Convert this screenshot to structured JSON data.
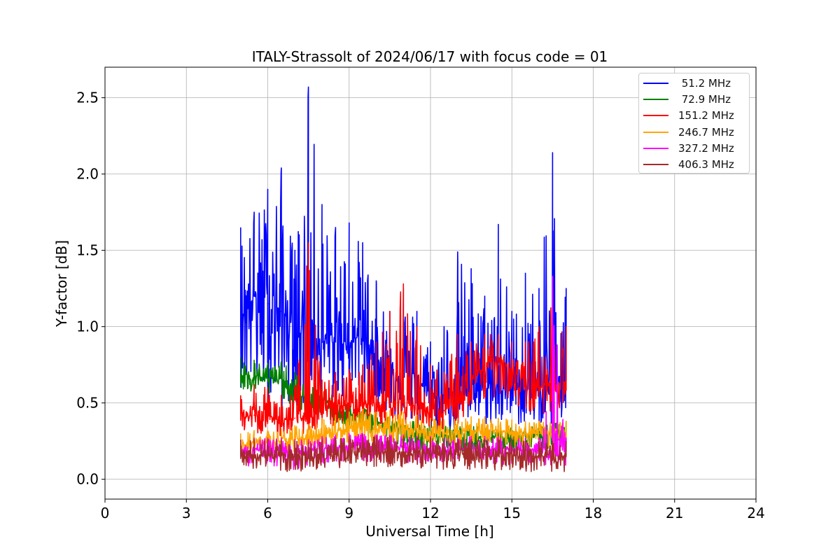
{
  "chart_data": {
    "type": "line",
    "title": "ITALY-Strassolt of 2024/06/17 with focus code = 01",
    "xlabel": "Universal Time [h]",
    "ylabel": "Y-factor [dB]",
    "xlim": [
      0,
      24
    ],
    "ylim": [
      -0.13,
      2.7
    ],
    "xticks": [
      0,
      3,
      6,
      9,
      12,
      15,
      18,
      21,
      24
    ],
    "yticks": [
      0.0,
      0.5,
      1.0,
      1.5,
      2.0,
      2.5
    ],
    "xtick_labels": [
      "0",
      "3",
      "6",
      "9",
      "12",
      "15",
      "18",
      "21",
      "24"
    ],
    "ytick_labels": [
      "0.0",
      "0.5",
      "1.0",
      "1.5",
      "2.0",
      "2.5"
    ],
    "grid": true,
    "legend_position": "top-right",
    "series": [
      {
        "name": " 51.2 MHz",
        "color": "#0000ff",
        "x": [
          5.0,
          5.5,
          6.0,
          6.5,
          7.0,
          7.5,
          8.0,
          8.5,
          9.0,
          9.5,
          10.0,
          10.5,
          11.0,
          11.5,
          12.0,
          12.5,
          13.0,
          13.5,
          14.0,
          14.5,
          15.0,
          15.5,
          16.0,
          16.5,
          17.0
        ],
        "values": [
          1.1,
          1.2,
          1.15,
          1.1,
          1.0,
          1.0,
          0.9,
          0.9,
          0.9,
          0.95,
          0.8,
          0.7,
          0.7,
          0.65,
          0.55,
          0.55,
          0.6,
          0.65,
          0.6,
          0.6,
          0.65,
          0.6,
          0.55,
          0.65,
          0.7
        ],
        "upper": [
          1.65,
          1.75,
          1.9,
          2.04,
          1.5,
          2.57,
          1.8,
          1.65,
          1.68,
          1.55,
          1.3,
          1.1,
          1.25,
          1.1,
          0.9,
          1.0,
          1.49,
          1.38,
          1.2,
          1.67,
          1.1,
          1.35,
          1.25,
          2.14,
          1.25
        ],
        "lower": [
          0.6,
          0.55,
          0.5,
          0.45,
          0.45,
          0.4,
          0.5,
          0.5,
          0.55,
          0.55,
          0.45,
          0.4,
          0.4,
          0.35,
          0.3,
          0.3,
          0.3,
          0.35,
          0.35,
          0.35,
          0.35,
          0.35,
          0.35,
          0.35,
          0.35
        ]
      },
      {
        "name": " 72.9 MHz",
        "color": "#008000",
        "x": [
          5.0,
          5.5,
          6.0,
          6.5,
          7.0,
          7.5,
          8.0,
          8.5,
          9.0,
          9.5,
          10.0,
          10.5,
          11.0,
          11.5,
          12.0,
          12.5,
          13.0,
          13.5,
          14.0,
          14.5,
          15.0,
          15.5,
          16.0,
          16.5,
          17.0
        ],
        "values": [
          0.68,
          0.68,
          0.66,
          0.66,
          0.58,
          0.5,
          0.52,
          0.45,
          0.42,
          0.42,
          0.38,
          0.35,
          0.32,
          0.3,
          0.28,
          0.28,
          0.28,
          0.28,
          0.28,
          0.28,
          0.28,
          0.28,
          0.28,
          0.3,
          0.32
        ],
        "upper": [
          0.8,
          0.78,
          0.76,
          0.77,
          0.7,
          0.62,
          0.6,
          0.55,
          0.5,
          0.48,
          0.45,
          0.42,
          0.4,
          0.38,
          0.36,
          0.35,
          0.35,
          0.35,
          0.35,
          0.35,
          0.35,
          0.35,
          0.35,
          0.37,
          0.38
        ],
        "lower": [
          0.56,
          0.56,
          0.54,
          0.54,
          0.46,
          0.4,
          0.42,
          0.36,
          0.32,
          0.32,
          0.28,
          0.25,
          0.22,
          0.2,
          0.18,
          0.18,
          0.18,
          0.18,
          0.18,
          0.18,
          0.18,
          0.18,
          0.18,
          0.2,
          0.22
        ]
      },
      {
        "name": "151.2 MHz",
        "color": "#ff0000",
        "x": [
          5.0,
          5.5,
          6.0,
          6.5,
          7.0,
          7.5,
          8.0,
          8.5,
          9.0,
          9.5,
          10.0,
          10.5,
          11.0,
          11.5,
          12.0,
          12.5,
          13.0,
          13.5,
          14.0,
          14.5,
          15.0,
          15.5,
          16.0,
          16.5,
          17.0
        ],
        "values": [
          0.4,
          0.42,
          0.42,
          0.38,
          0.4,
          0.4,
          0.45,
          0.48,
          0.5,
          0.5,
          0.48,
          0.52,
          0.5,
          0.48,
          0.45,
          0.45,
          0.5,
          0.6,
          0.75,
          0.8,
          0.72,
          0.6,
          0.6,
          0.62,
          0.65
        ],
        "upper": [
          0.55,
          0.62,
          0.6,
          0.55,
          0.6,
          1.55,
          0.65,
          0.7,
          0.72,
          0.75,
          0.9,
          1.1,
          1.28,
          1.0,
          0.75,
          0.7,
          0.95,
          0.9,
          0.95,
          0.95,
          0.9,
          0.9,
          1.0,
          1.2,
          1.0
        ],
        "lower": [
          0.28,
          0.3,
          0.3,
          0.28,
          0.3,
          0.3,
          0.32,
          0.35,
          0.36,
          0.36,
          0.35,
          0.38,
          0.36,
          0.34,
          0.32,
          0.32,
          0.35,
          0.4,
          0.5,
          0.55,
          0.5,
          0.42,
          0.42,
          0.45,
          0.45
        ]
      },
      {
        "name": "246.7 MHz",
        "color": "#ffa500",
        "x": [
          5.0,
          5.5,
          6.0,
          6.5,
          7.0,
          7.5,
          8.0,
          8.5,
          9.0,
          9.5,
          10.0,
          10.5,
          11.0,
          11.5,
          12.0,
          12.5,
          13.0,
          13.5,
          14.0,
          14.5,
          15.0,
          15.5,
          16.0,
          16.5,
          17.0
        ],
        "values": [
          0.22,
          0.24,
          0.24,
          0.25,
          0.26,
          0.27,
          0.3,
          0.32,
          0.33,
          0.34,
          0.33,
          0.34,
          0.33,
          0.32,
          0.3,
          0.3,
          0.31,
          0.32,
          0.32,
          0.32,
          0.31,
          0.3,
          0.3,
          0.3,
          0.3
        ],
        "upper": [
          0.3,
          0.32,
          0.32,
          0.33,
          0.35,
          0.36,
          0.4,
          0.42,
          0.44,
          0.46,
          0.44,
          0.45,
          0.44,
          0.42,
          0.4,
          0.39,
          0.4,
          0.41,
          0.41,
          0.4,
          0.39,
          0.38,
          0.38,
          0.38,
          0.38
        ],
        "lower": [
          0.14,
          0.15,
          0.15,
          0.16,
          0.17,
          0.18,
          0.2,
          0.22,
          0.23,
          0.24,
          0.23,
          0.24,
          0.23,
          0.22,
          0.21,
          0.21,
          0.22,
          0.23,
          0.23,
          0.23,
          0.22,
          0.21,
          0.21,
          0.21,
          0.21
        ]
      },
      {
        "name": "327.2 MHz",
        "color": "#ff00ff",
        "x": [
          5.0,
          5.5,
          6.0,
          6.5,
          7.0,
          7.5,
          8.0,
          8.5,
          9.0,
          9.5,
          10.0,
          10.5,
          11.0,
          11.5,
          12.0,
          12.5,
          13.0,
          13.5,
          14.0,
          14.5,
          15.0,
          15.5,
          16.0,
          16.5,
          17.0
        ],
        "values": [
          0.18,
          0.19,
          0.19,
          0.19,
          0.18,
          0.18,
          0.2,
          0.21,
          0.22,
          0.22,
          0.21,
          0.21,
          0.21,
          0.2,
          0.2,
          0.19,
          0.19,
          0.2,
          0.2,
          0.2,
          0.19,
          0.19,
          0.19,
          0.19,
          0.19
        ],
        "upper": [
          0.26,
          0.27,
          0.27,
          0.27,
          0.26,
          0.26,
          0.28,
          0.29,
          0.3,
          0.3,
          0.29,
          0.29,
          0.29,
          0.28,
          0.28,
          0.27,
          0.27,
          0.28,
          0.28,
          0.28,
          0.27,
          0.27,
          0.27,
          1.33,
          0.27
        ],
        "lower": [
          0.08,
          0.09,
          0.09,
          0.08,
          0.06,
          0.05,
          0.1,
          0.11,
          0.12,
          0.12,
          0.11,
          0.11,
          0.11,
          0.1,
          0.1,
          0.09,
          0.09,
          0.1,
          0.1,
          0.1,
          0.09,
          0.09,
          0.09,
          0.09,
          0.09
        ]
      },
      {
        "name": "406.3 MHz",
        "color": "#a52a2a",
        "x": [
          5.0,
          5.5,
          6.0,
          6.5,
          7.0,
          7.5,
          8.0,
          8.5,
          9.0,
          9.5,
          10.0,
          10.5,
          11.0,
          11.5,
          12.0,
          12.5,
          13.0,
          13.5,
          14.0,
          14.5,
          15.0,
          15.5,
          16.0,
          16.5,
          17.0
        ],
        "values": [
          0.16,
          0.16,
          0.16,
          0.16,
          0.15,
          0.14,
          0.16,
          0.17,
          0.18,
          0.19,
          0.18,
          0.18,
          0.18,
          0.17,
          0.17,
          0.16,
          0.16,
          0.16,
          0.16,
          0.16,
          0.16,
          0.15,
          0.15,
          0.15,
          0.15
        ],
        "upper": [
          0.26,
          0.26,
          0.26,
          0.26,
          0.25,
          0.24,
          0.26,
          0.27,
          0.28,
          0.29,
          0.28,
          0.28,
          0.28,
          0.27,
          0.27,
          0.26,
          0.26,
          0.26,
          0.26,
          0.26,
          0.26,
          0.25,
          0.25,
          0.25,
          0.25
        ],
        "lower": [
          0.07,
          0.07,
          0.06,
          0.05,
          0.03,
          0.02,
          0.06,
          0.07,
          0.08,
          0.09,
          0.08,
          0.08,
          0.08,
          0.07,
          0.07,
          0.06,
          0.06,
          0.06,
          0.06,
          0.06,
          0.06,
          0.05,
          0.05,
          0.04,
          0.04
        ]
      }
    ]
  }
}
